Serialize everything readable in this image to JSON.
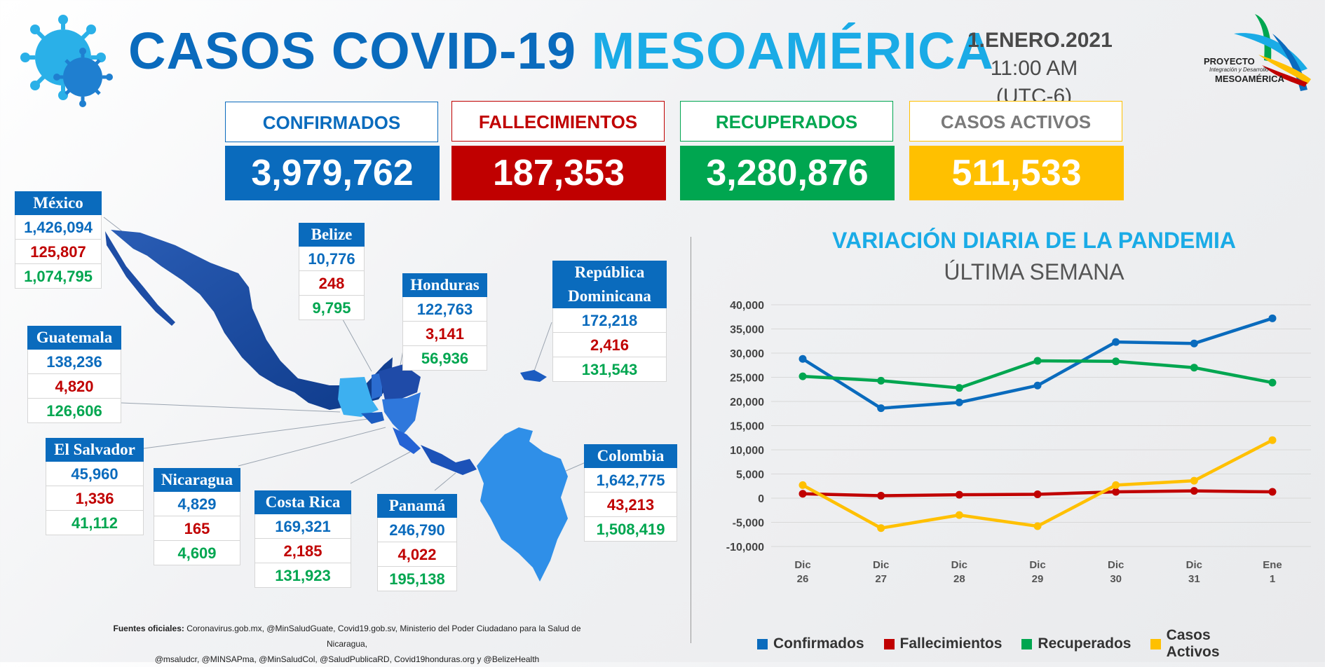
{
  "header": {
    "title_part1": "CASOS COVID-19",
    "title_part2": "MESOAMÉRICA",
    "date": "1.ENERO.2021",
    "time": "11:00 AM (UTC-6)",
    "logo_line1": "PROYECTO",
    "logo_line2": "Integración y Desarrollo",
    "logo_line3": "MESOAMÉRICA"
  },
  "kpis": [
    {
      "label": "CONFIRMADOS",
      "value": "3,979,762",
      "color": "#0a6bbd"
    },
    {
      "label": "FALLECIMIENTOS",
      "value": "187,353",
      "color": "#c00000"
    },
    {
      "label": "RECUPERADOS",
      "value": "3,280,876",
      "color": "#00a650"
    },
    {
      "label": "CASOS ACTIVOS",
      "value": "511,533",
      "color": "#ffc000"
    }
  ],
  "countries": {
    "mexico": {
      "name": "México",
      "confirmados": "1,426,094",
      "fallecimientos": "125,807",
      "recuperados": "1,074,795"
    },
    "belize": {
      "name": "Belize",
      "confirmados": "10,776",
      "fallecimientos": "248",
      "recuperados": "9,795"
    },
    "honduras": {
      "name": "Honduras",
      "confirmados": "122,763",
      "fallecimientos": "3,141",
      "recuperados": "56,936"
    },
    "rep_dom": {
      "name_line1": "República",
      "name_line2": "Dominicana",
      "confirmados": "172,218",
      "fallecimientos": "2,416",
      "recuperados": "131,543"
    },
    "guatemala": {
      "name": "Guatemala",
      "confirmados": "138,236",
      "fallecimientos": "4,820",
      "recuperados": "126,606"
    },
    "el_salvador": {
      "name": "El Salvador",
      "confirmados": "45,960",
      "fallecimientos": "1,336",
      "recuperados": "41,112"
    },
    "nicaragua": {
      "name": "Nicaragua",
      "confirmados": "4,829",
      "fallecimientos": "165",
      "recuperados": "4,609"
    },
    "costa_rica": {
      "name": "Costa Rica",
      "confirmados": "169,321",
      "fallecimientos": "2,185",
      "recuperados": "131,923"
    },
    "panama": {
      "name": "Panamá",
      "confirmados": "246,790",
      "fallecimientos": "4,022",
      "recuperados": "195,138"
    },
    "colombia": {
      "name": "Colombia",
      "confirmados": "1,642,775",
      "fallecimientos": "43,213",
      "recuperados": "1,508,419"
    }
  },
  "sources": {
    "label": "Fuentes oficiales:",
    "line1": "Coronavirus.gob.mx, @MinSaludGuate, Covid19.gob.sv, Ministerio del Poder Ciudadano para la Salud de Nicaragua,",
    "line2": "@msaludcr, @MINSAPma, @MinSaludCol, @SaludPublicaRD, Covid19honduras.org y @BelizeHealth"
  },
  "chart_data": {
    "type": "line",
    "title": "VARIACIÓN DIARIA DE LA PANDEMIA",
    "subtitle": "ÚLTIMA SEMANA",
    "categories": [
      [
        "Dic",
        "26"
      ],
      [
        "Dic",
        "27"
      ],
      [
        "Dic",
        "28"
      ],
      [
        "Dic",
        "29"
      ],
      [
        "Dic",
        "30"
      ],
      [
        "Dic",
        "31"
      ],
      [
        "Ene",
        "1"
      ]
    ],
    "ylim": [
      -10000,
      40000
    ],
    "yticks": [
      -10000,
      -5000,
      0,
      5000,
      10000,
      15000,
      20000,
      25000,
      30000,
      35000,
      40000
    ],
    "ytick_labels": [
      "-10,000",
      "-5,000",
      "0",
      "5,000",
      "10,000",
      "15,000",
      "20,000",
      "25,000",
      "30,000",
      "35,000",
      "40,000"
    ],
    "grid": true,
    "legend_position": "bottom",
    "series": [
      {
        "name": "Confirmados",
        "color": "#0a6bbd",
        "values": [
          28800,
          18600,
          19800,
          23300,
          32300,
          32000,
          37200
        ]
      },
      {
        "name": "Fallecimientos",
        "color": "#c00000",
        "values": [
          900,
          500,
          700,
          800,
          1300,
          1500,
          1300
        ]
      },
      {
        "name": "Recuperados",
        "color": "#00a650",
        "values": [
          25200,
          24300,
          22800,
          28400,
          28300,
          27000,
          23900
        ]
      },
      {
        "name": "Casos Activos",
        "color": "#ffc000",
        "values": [
          2700,
          -6200,
          -3500,
          -5800,
          2700,
          3600,
          12000
        ]
      }
    ]
  }
}
